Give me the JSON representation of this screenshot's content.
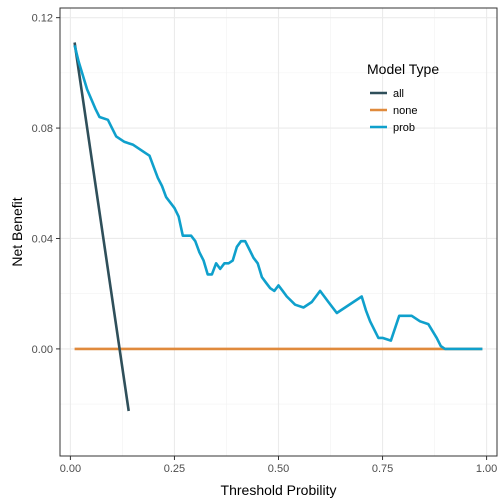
{
  "chart_data": {
    "type": "line",
    "xlabel": "Threshold Probility",
    "ylabel": "Net Benefit",
    "xlim": [
      -0.025,
      1.025
    ],
    "ylim": [
      -0.0388,
      0.1235
    ],
    "x_ticks": [
      0.0,
      0.25,
      0.5,
      0.75,
      1.0
    ],
    "x_tick_labels": [
      "0.00",
      "0.25",
      "0.50",
      "0.75",
      "1.00"
    ],
    "y_ticks": [
      0.0,
      0.04,
      0.08,
      0.12
    ],
    "y_tick_labels": [
      "0.00",
      "0.04",
      "0.08",
      "0.12"
    ],
    "grid": true,
    "legend": {
      "title": "Model Type",
      "position": "top-right"
    },
    "series": [
      {
        "name": "all",
        "color": "#2f4f5a",
        "x": [
          0.01,
          0.14
        ],
        "y": [
          0.111,
          -0.0225
        ]
      },
      {
        "name": "none",
        "color": "#e08a3c",
        "x": [
          0.01,
          0.99
        ],
        "y": [
          0.0,
          0.0
        ]
      },
      {
        "name": "prob",
        "color": "#0fa0cc",
        "x": [
          0.01,
          0.02,
          0.04,
          0.06,
          0.07,
          0.09,
          0.1,
          0.11,
          0.13,
          0.15,
          0.17,
          0.18,
          0.19,
          0.2,
          0.21,
          0.22,
          0.23,
          0.24,
          0.25,
          0.26,
          0.27,
          0.28,
          0.29,
          0.3,
          0.31,
          0.32,
          0.33,
          0.34,
          0.35,
          0.36,
          0.37,
          0.38,
          0.39,
          0.4,
          0.41,
          0.42,
          0.43,
          0.44,
          0.45,
          0.46,
          0.47,
          0.48,
          0.49,
          0.5,
          0.51,
          0.52,
          0.54,
          0.56,
          0.58,
          0.6,
          0.61,
          0.62,
          0.64,
          0.66,
          0.68,
          0.7,
          0.71,
          0.72,
          0.74,
          0.75,
          0.77,
          0.79,
          0.81,
          0.82,
          0.84,
          0.86,
          0.88,
          0.89,
          0.9,
          0.99
        ],
        "y": [
          0.11,
          0.104,
          0.094,
          0.087,
          0.084,
          0.083,
          0.08,
          0.077,
          0.075,
          0.074,
          0.072,
          0.071,
          0.07,
          0.066,
          0.062,
          0.059,
          0.055,
          0.053,
          0.051,
          0.048,
          0.041,
          0.041,
          0.041,
          0.039,
          0.035,
          0.032,
          0.027,
          0.027,
          0.031,
          0.029,
          0.031,
          0.031,
          0.032,
          0.037,
          0.039,
          0.039,
          0.036,
          0.033,
          0.031,
          0.026,
          0.024,
          0.022,
          0.021,
          0.023,
          0.021,
          0.019,
          0.016,
          0.015,
          0.017,
          0.021,
          0.019,
          0.017,
          0.013,
          0.015,
          0.017,
          0.019,
          0.014,
          0.01,
          0.004,
          0.004,
          0.003,
          0.012,
          0.012,
          0.012,
          0.01,
          0.009,
          0.004,
          0.001,
          0.0,
          0.0
        ]
      }
    ]
  }
}
